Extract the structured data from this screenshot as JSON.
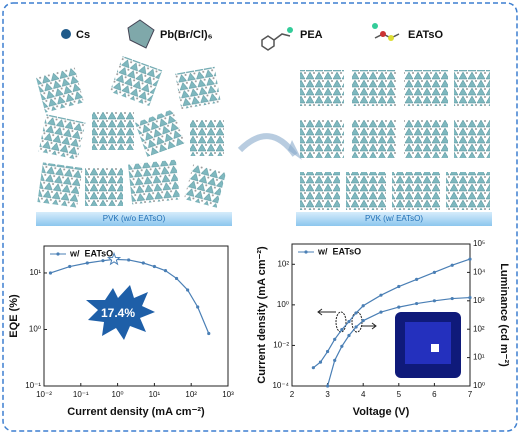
{
  "header": {
    "legend_items": [
      "Cs",
      "Pb(Br/Cl)₆",
      "PEA",
      "EATsO"
    ]
  },
  "schematic": {
    "left_label": "PVK (w/o EATsO)",
    "right_label": "PVK (w/ EATsO)"
  },
  "chart_data": [
    {
      "type": "line",
      "xlabel": "Current density (mA cm⁻²)",
      "ylabel": "EQE (%)",
      "annotation": "17.4%",
      "xscale": "log",
      "yscale": "log",
      "xlim": [
        0.01,
        1000
      ],
      "ylim": [
        0.1,
        30
      ],
      "xticks": [
        {
          "value": 0.01,
          "label": "10⁻²"
        },
        {
          "value": 0.1,
          "label": "10⁻¹"
        },
        {
          "value": 1,
          "label": "10⁰"
        },
        {
          "value": 10,
          "label": "10¹"
        },
        {
          "value": 100,
          "label": "10²"
        },
        {
          "value": 1000,
          "label": "10³"
        }
      ],
      "yticks": [
        {
          "value": 0.1,
          "label": "10⁻¹"
        },
        {
          "value": 1,
          "label": "10⁰"
        },
        {
          "value": 10,
          "label": "10¹"
        }
      ],
      "x": [
        0.015,
        0.05,
        0.15,
        0.4,
        0.8,
        2,
        5,
        10,
        20,
        40,
        80,
        150,
        300
      ],
      "series": [
        {
          "name": "w/  EATsO",
          "color": "#4a7fb5",
          "values": [
            10,
            13,
            15,
            16.5,
            17.4,
            17,
            15,
            13,
            11,
            8,
            5,
            2.5,
            0.85
          ]
        }
      ]
    },
    {
      "type": "line",
      "xlabel": "Voltage (V)",
      "ylabel": "Current density (mA cm⁻²)",
      "y2label": "Luminance (cd m⁻²)",
      "yscale": "log",
      "y2scale": "log",
      "xlim": [
        2,
        7
      ],
      "ylim": [
        0.0001,
        1000
      ],
      "y2lim": [
        1,
        100000
      ],
      "xticks": [
        2,
        3,
        4,
        5,
        6,
        7
      ],
      "yticks": [
        {
          "value": 0.0001,
          "label": "10⁻⁴"
        },
        {
          "value": 0.01,
          "label": "10⁻²"
        },
        {
          "value": 1,
          "label": "10⁰"
        },
        {
          "value": 100,
          "label": "10²"
        }
      ],
      "y2ticks": [
        {
          "value": 1,
          "label": "10⁰"
        },
        {
          "value": 10,
          "label": "10¹"
        },
        {
          "value": 100,
          "label": "10²"
        },
        {
          "value": 1000,
          "label": "10³"
        },
        {
          "value": 10000,
          "label": "10⁴"
        },
        {
          "value": 100000,
          "label": "10⁵"
        }
      ],
      "x": [
        2.6,
        2.8,
        3.0,
        3.2,
        3.4,
        3.6,
        3.8,
        4.0,
        4.5,
        5,
        5.5,
        6,
        6.5,
        7
      ],
      "series": [
        {
          "name": "w/  EATsO",
          "color": "#4a7fb5",
          "values": [
            0.0008,
            0.0015,
            0.005,
            0.02,
            0.06,
            0.15,
            0.4,
            0.9,
            3,
            8,
            18,
            40,
            90,
            180
          ]
        },
        {
          "color": "#4a7fb5",
          "axis": "y2",
          "values": [
            null,
            null,
            1,
            8,
            25,
            60,
            120,
            200,
            400,
            600,
            800,
            1000,
            1200,
            1300
          ]
        }
      ]
    }
  ]
}
